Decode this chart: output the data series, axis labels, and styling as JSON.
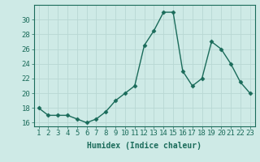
{
  "x": [
    1,
    2,
    3,
    4,
    5,
    6,
    7,
    8,
    9,
    10,
    11,
    12,
    13,
    14,
    15,
    16,
    17,
    18,
    19,
    20,
    21,
    22,
    23
  ],
  "y": [
    18,
    17,
    17,
    17,
    16.5,
    16,
    16.5,
    17.5,
    19,
    20,
    21,
    26.5,
    28.5,
    31,
    31,
    23,
    21,
    22,
    27,
    26,
    24,
    21.5,
    20
  ],
  "line_color": "#1a6b5a",
  "marker": "D",
  "marker_size": 2.5,
  "line_width": 1.0,
  "xlabel": "Humidex (Indice chaleur)",
  "xlim": [
    0.5,
    23.5
  ],
  "ylim": [
    15.5,
    32
  ],
  "yticks": [
    16,
    18,
    20,
    22,
    24,
    26,
    28,
    30
  ],
  "xticks": [
    1,
    2,
    3,
    4,
    5,
    6,
    7,
    8,
    9,
    10,
    11,
    12,
    13,
    14,
    15,
    16,
    17,
    18,
    19,
    20,
    21,
    22,
    23
  ],
  "background_color": "#ceeae6",
  "grid_color": "#b8d8d4",
  "label_color": "#1a6b5a",
  "xlabel_fontsize": 7,
  "tick_fontsize": 6.5
}
